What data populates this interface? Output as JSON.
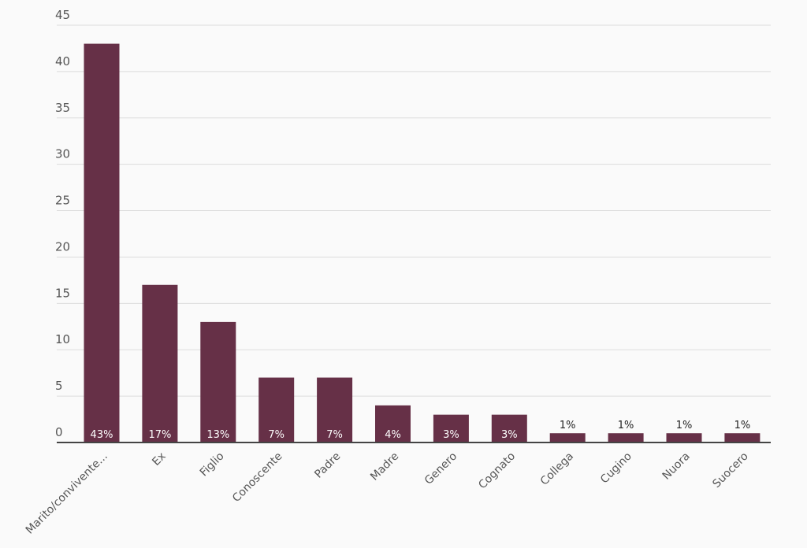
{
  "chart_data": {
    "type": "bar",
    "title": "",
    "xlabel": "",
    "ylabel": "",
    "ylim": [
      0,
      45
    ],
    "yticks": [
      0,
      5,
      10,
      15,
      20,
      25,
      30,
      35,
      40,
      45
    ],
    "grid": true,
    "categories": [
      "Marito/convivente...",
      "Ex",
      "Figlio",
      "Conoscente",
      "Padre",
      "Madre",
      "Genero",
      "Cognato",
      "Collega",
      "Cugino",
      "Nuora",
      "Suocero"
    ],
    "values": [
      43,
      17,
      13,
      7,
      7,
      4,
      3,
      3,
      1,
      1,
      1,
      1
    ],
    "data_labels": [
      "43%",
      "17%",
      "13%",
      "7%",
      "7%",
      "4%",
      "3%",
      "3%",
      "1%",
      "1%",
      "1%",
      "1%"
    ],
    "bar_color": "#663047"
  }
}
